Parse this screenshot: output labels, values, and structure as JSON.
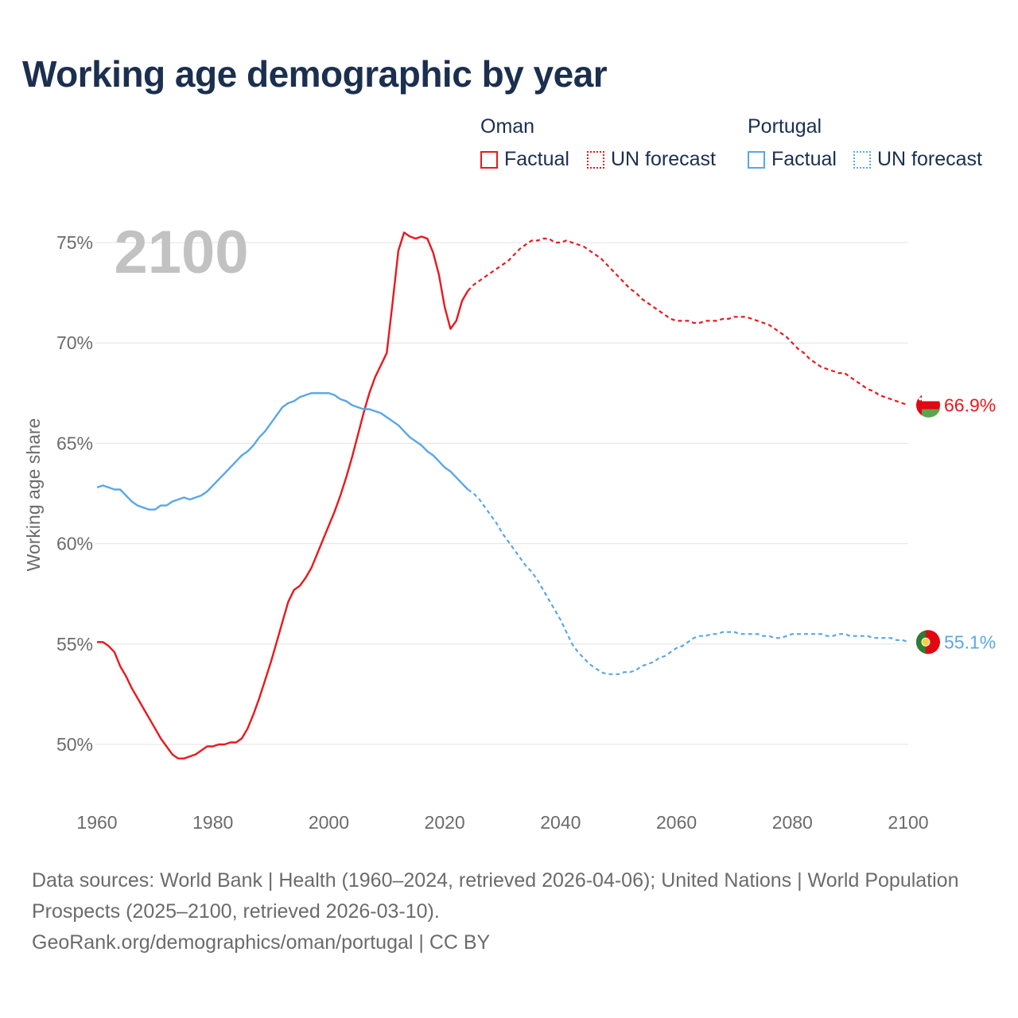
{
  "title": "Working age demographic by year",
  "legend": {
    "groups": [
      {
        "name": "Oman",
        "factual_label": "Factual",
        "forecast_label": "UN forecast",
        "color": "#e8191d"
      },
      {
        "name": "Portugal",
        "factual_label": "Factual",
        "forecast_label": "UN forecast",
        "color": "#5aa7e6"
      }
    ]
  },
  "footer": {
    "sources": "Data sources: World Bank | Health (1960–2024, retrieved 2026-04-06); United Nations | World Population Prospects (2025–2100, retrieved 2026-03-10).",
    "credit": "GeoRank.org/demographics/oman/portugal | CC BY"
  },
  "chart_data": {
    "type": "line",
    "title": "Working age demographic by year",
    "year_label": "2100",
    "xlabel": "",
    "ylabel": "Working age share",
    "xlim": [
      1960,
      2100
    ],
    "ylim": [
      48,
      77
    ],
    "x_ticks": [
      "1960",
      "1980",
      "2000",
      "2020",
      "2040",
      "2060",
      "2080",
      "2100"
    ],
    "y_ticks": [
      {
        "value": 50,
        "label": "50%"
      },
      {
        "value": 55,
        "label": "55%"
      },
      {
        "value": 60,
        "label": "60%"
      },
      {
        "value": 65,
        "label": "65%"
      },
      {
        "value": 70,
        "label": "70%"
      },
      {
        "value": 75,
        "label": "75%"
      }
    ],
    "grid": true,
    "forecast_start": 2024,
    "series": [
      {
        "name": "Oman",
        "color": "#e8191d",
        "end_label": "66.9%",
        "points": [
          [
            1960,
            55.1
          ],
          [
            1961,
            55.1
          ],
          [
            1962,
            54.9
          ],
          [
            1963,
            54.6
          ],
          [
            1964,
            53.9
          ],
          [
            1965,
            53.4
          ],
          [
            1966,
            52.8
          ],
          [
            1967,
            52.3
          ],
          [
            1968,
            51.8
          ],
          [
            1969,
            51.3
          ],
          [
            1970,
            50.8
          ],
          [
            1971,
            50.3
          ],
          [
            1972,
            49.9
          ],
          [
            1973,
            49.5
          ],
          [
            1974,
            49.3
          ],
          [
            1975,
            49.3
          ],
          [
            1976,
            49.4
          ],
          [
            1977,
            49.5
          ],
          [
            1978,
            49.7
          ],
          [
            1979,
            49.9
          ],
          [
            1980,
            49.9
          ],
          [
            1981,
            50.0
          ],
          [
            1982,
            50.0
          ],
          [
            1983,
            50.1
          ],
          [
            1984,
            50.1
          ],
          [
            1985,
            50.3
          ],
          [
            1986,
            50.8
          ],
          [
            1987,
            51.5
          ],
          [
            1988,
            52.3
          ],
          [
            1989,
            53.2
          ],
          [
            1990,
            54.1
          ],
          [
            1991,
            55.1
          ],
          [
            1992,
            56.1
          ],
          [
            1993,
            57.1
          ],
          [
            1994,
            57.7
          ],
          [
            1995,
            57.9
          ],
          [
            1996,
            58.3
          ],
          [
            1997,
            58.8
          ],
          [
            1998,
            59.5
          ],
          [
            1999,
            60.2
          ],
          [
            2000,
            60.9
          ],
          [
            2001,
            61.6
          ],
          [
            2002,
            62.4
          ],
          [
            2003,
            63.3
          ],
          [
            2004,
            64.3
          ],
          [
            2005,
            65.4
          ],
          [
            2006,
            66.5
          ],
          [
            2007,
            67.5
          ],
          [
            2008,
            68.3
          ],
          [
            2009,
            68.9
          ],
          [
            2010,
            69.5
          ],
          [
            2011,
            72.0
          ],
          [
            2012,
            74.6
          ],
          [
            2013,
            75.5
          ],
          [
            2014,
            75.3
          ],
          [
            2015,
            75.2
          ],
          [
            2016,
            75.3
          ],
          [
            2017,
            75.2
          ],
          [
            2018,
            74.5
          ],
          [
            2019,
            73.4
          ],
          [
            2020,
            71.8
          ],
          [
            2021,
            70.7
          ],
          [
            2022,
            71.1
          ],
          [
            2023,
            72.1
          ],
          [
            2024,
            72.6
          ],
          [
            2025,
            72.9
          ],
          [
            2026,
            73.1
          ],
          [
            2027,
            73.3
          ],
          [
            2028,
            73.5
          ],
          [
            2029,
            73.7
          ],
          [
            2030,
            73.9
          ],
          [
            2031,
            74.1
          ],
          [
            2032,
            74.4
          ],
          [
            2033,
            74.7
          ],
          [
            2034,
            74.9
          ],
          [
            2035,
            75.1
          ],
          [
            2036,
            75.1
          ],
          [
            2037,
            75.2
          ],
          [
            2038,
            75.2
          ],
          [
            2039,
            75.0
          ],
          [
            2040,
            75.0
          ],
          [
            2041,
            75.1
          ],
          [
            2042,
            75.0
          ],
          [
            2043,
            74.9
          ],
          [
            2044,
            74.8
          ],
          [
            2045,
            74.6
          ],
          [
            2046,
            74.4
          ],
          [
            2047,
            74.2
          ],
          [
            2048,
            73.9
          ],
          [
            2049,
            73.6
          ],
          [
            2050,
            73.3
          ],
          [
            2051,
            73.0
          ],
          [
            2052,
            72.7
          ],
          [
            2053,
            72.5
          ],
          [
            2054,
            72.2
          ],
          [
            2055,
            72.0
          ],
          [
            2056,
            71.8
          ],
          [
            2057,
            71.6
          ],
          [
            2058,
            71.4
          ],
          [
            2059,
            71.2
          ],
          [
            2060,
            71.1
          ],
          [
            2061,
            71.1
          ],
          [
            2062,
            71.1
          ],
          [
            2063,
            71.0
          ],
          [
            2064,
            71.0
          ],
          [
            2065,
            71.1
          ],
          [
            2066,
            71.1
          ],
          [
            2067,
            71.1
          ],
          [
            2068,
            71.2
          ],
          [
            2069,
            71.2
          ],
          [
            2070,
            71.3
          ],
          [
            2071,
            71.3
          ],
          [
            2072,
            71.3
          ],
          [
            2073,
            71.2
          ],
          [
            2074,
            71.1
          ],
          [
            2075,
            71.0
          ],
          [
            2076,
            70.9
          ],
          [
            2077,
            70.7
          ],
          [
            2078,
            70.5
          ],
          [
            2079,
            70.3
          ],
          [
            2080,
            70.0
          ],
          [
            2081,
            69.7
          ],
          [
            2082,
            69.5
          ],
          [
            2083,
            69.2
          ],
          [
            2084,
            69.0
          ],
          [
            2085,
            68.8
          ],
          [
            2086,
            68.7
          ],
          [
            2087,
            68.6
          ],
          [
            2088,
            68.5
          ],
          [
            2089,
            68.5
          ],
          [
            2090,
            68.3
          ],
          [
            2091,
            68.1
          ],
          [
            2092,
            67.9
          ],
          [
            2093,
            67.7
          ],
          [
            2094,
            67.6
          ],
          [
            2095,
            67.4
          ],
          [
            2096,
            67.3
          ],
          [
            2097,
            67.2
          ],
          [
            2098,
            67.1
          ],
          [
            2099,
            67.0
          ],
          [
            2100,
            66.9
          ]
        ]
      },
      {
        "name": "Portugal",
        "color": "#5aa7e6",
        "end_label": "55.1%",
        "points": [
          [
            1960,
            62.8
          ],
          [
            1961,
            62.9
          ],
          [
            1962,
            62.8
          ],
          [
            1963,
            62.7
          ],
          [
            1964,
            62.7
          ],
          [
            1965,
            62.4
          ],
          [
            1966,
            62.1
          ],
          [
            1967,
            61.9
          ],
          [
            1968,
            61.8
          ],
          [
            1969,
            61.7
          ],
          [
            1970,
            61.7
          ],
          [
            1971,
            61.9
          ],
          [
            1972,
            61.9
          ],
          [
            1973,
            62.1
          ],
          [
            1974,
            62.2
          ],
          [
            1975,
            62.3
          ],
          [
            1976,
            62.2
          ],
          [
            1977,
            62.3
          ],
          [
            1978,
            62.4
          ],
          [
            1979,
            62.6
          ],
          [
            1980,
            62.9
          ],
          [
            1981,
            63.2
          ],
          [
            1982,
            63.5
          ],
          [
            1983,
            63.8
          ],
          [
            1984,
            64.1
          ],
          [
            1985,
            64.4
          ],
          [
            1986,
            64.6
          ],
          [
            1987,
            64.9
          ],
          [
            1988,
            65.3
          ],
          [
            1989,
            65.6
          ],
          [
            1990,
            66.0
          ],
          [
            1991,
            66.4
          ],
          [
            1992,
            66.8
          ],
          [
            1993,
            67.0
          ],
          [
            1994,
            67.1
          ],
          [
            1995,
            67.3
          ],
          [
            1996,
            67.4
          ],
          [
            1997,
            67.5
          ],
          [
            1998,
            67.5
          ],
          [
            1999,
            67.5
          ],
          [
            2000,
            67.5
          ],
          [
            2001,
            67.4
          ],
          [
            2002,
            67.2
          ],
          [
            2003,
            67.1
          ],
          [
            2004,
            66.9
          ],
          [
            2005,
            66.8
          ],
          [
            2006,
            66.7
          ],
          [
            2007,
            66.7
          ],
          [
            2008,
            66.6
          ],
          [
            2009,
            66.5
          ],
          [
            2010,
            66.3
          ],
          [
            2011,
            66.1
          ],
          [
            2012,
            65.9
          ],
          [
            2013,
            65.6
          ],
          [
            2014,
            65.3
          ],
          [
            2015,
            65.1
          ],
          [
            2016,
            64.9
          ],
          [
            2017,
            64.6
          ],
          [
            2018,
            64.4
          ],
          [
            2019,
            64.1
          ],
          [
            2020,
            63.8
          ],
          [
            2021,
            63.6
          ],
          [
            2022,
            63.3
          ],
          [
            2023,
            63.0
          ],
          [
            2024,
            62.7
          ],
          [
            2025,
            62.5
          ],
          [
            2026,
            62.2
          ],
          [
            2027,
            61.8
          ],
          [
            2028,
            61.4
          ],
          [
            2029,
            61.0
          ],
          [
            2030,
            60.5
          ],
          [
            2031,
            60.1
          ],
          [
            2032,
            59.7
          ],
          [
            2033,
            59.3
          ],
          [
            2034,
            58.9
          ],
          [
            2035,
            58.6
          ],
          [
            2036,
            58.2
          ],
          [
            2037,
            57.7
          ],
          [
            2038,
            57.2
          ],
          [
            2039,
            56.7
          ],
          [
            2040,
            56.2
          ],
          [
            2041,
            55.6
          ],
          [
            2042,
            55.0
          ],
          [
            2043,
            54.6
          ],
          [
            2044,
            54.3
          ],
          [
            2045,
            54.0
          ],
          [
            2046,
            53.8
          ],
          [
            2047,
            53.6
          ],
          [
            2048,
            53.5
          ],
          [
            2049,
            53.5
          ],
          [
            2050,
            53.5
          ],
          [
            2051,
            53.6
          ],
          [
            2052,
            53.6
          ],
          [
            2053,
            53.7
          ],
          [
            2054,
            53.9
          ],
          [
            2055,
            54.0
          ],
          [
            2056,
            54.1
          ],
          [
            2057,
            54.3
          ],
          [
            2058,
            54.4
          ],
          [
            2059,
            54.6
          ],
          [
            2060,
            54.8
          ],
          [
            2061,
            54.9
          ],
          [
            2062,
            55.1
          ],
          [
            2063,
            55.3
          ],
          [
            2064,
            55.4
          ],
          [
            2065,
            55.4
          ],
          [
            2066,
            55.5
          ],
          [
            2067,
            55.5
          ],
          [
            2068,
            55.6
          ],
          [
            2069,
            55.6
          ],
          [
            2070,
            55.6
          ],
          [
            2071,
            55.5
          ],
          [
            2072,
            55.5
          ],
          [
            2073,
            55.5
          ],
          [
            2074,
            55.5
          ],
          [
            2075,
            55.4
          ],
          [
            2076,
            55.4
          ],
          [
            2077,
            55.3
          ],
          [
            2078,
            55.3
          ],
          [
            2079,
            55.4
          ],
          [
            2080,
            55.5
          ],
          [
            2081,
            55.5
          ],
          [
            2082,
            55.5
          ],
          [
            2083,
            55.5
          ],
          [
            2084,
            55.5
          ],
          [
            2085,
            55.5
          ],
          [
            2086,
            55.4
          ],
          [
            2087,
            55.4
          ],
          [
            2088,
            55.5
          ],
          [
            2089,
            55.5
          ],
          [
            2090,
            55.4
          ],
          [
            2091,
            55.4
          ],
          [
            2092,
            55.4
          ],
          [
            2093,
            55.4
          ],
          [
            2094,
            55.3
          ],
          [
            2095,
            55.3
          ],
          [
            2096,
            55.3
          ],
          [
            2097,
            55.3
          ],
          [
            2098,
            55.2
          ],
          [
            2099,
            55.2
          ],
          [
            2100,
            55.1
          ]
        ]
      }
    ]
  }
}
